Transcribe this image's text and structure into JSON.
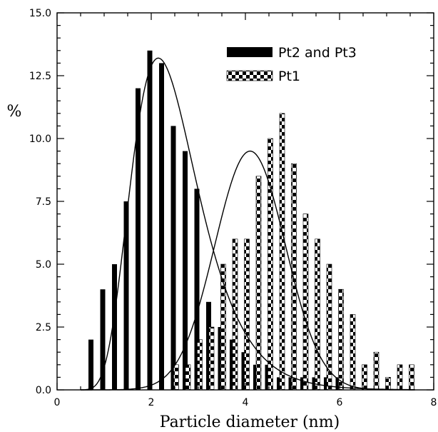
{
  "chart_data": {
    "type": "bar",
    "xlabel": "Particle diameter (nm)",
    "ylabel": "%",
    "xlim": [
      0,
      8
    ],
    "ylim": [
      0,
      15
    ],
    "x_ticks": [
      "0",
      "2",
      "4",
      "6",
      "8"
    ],
    "y_ticks": [
      "0.0",
      "2.5",
      "5.0",
      "7.5",
      "10.0",
      "12.5",
      "15.0"
    ],
    "grid": false,
    "legend": {
      "position": "top-right",
      "entries": [
        {
          "label": "Pt2 and Pt3",
          "pattern": "solid"
        },
        {
          "label": "Pt1",
          "pattern": "checkered"
        }
      ]
    },
    "series": [
      {
        "name": "Pt2 and Pt3",
        "pattern": "solid",
        "x": [
          0.75,
          1.0,
          1.25,
          1.5,
          1.75,
          2.0,
          2.25,
          2.5,
          2.75,
          3.0,
          3.25,
          3.5,
          3.75,
          4.0,
          4.25,
          4.5,
          4.75,
          5.0,
          5.25,
          5.5,
          5.75,
          6.0
        ],
        "values": [
          2.0,
          4.0,
          5.0,
          7.5,
          12.0,
          13.5,
          13.0,
          10.5,
          9.5,
          8.0,
          3.5,
          2.5,
          2.0,
          1.5,
          1.0,
          1.0,
          0.5,
          0.5,
          0.5,
          0.5,
          0.5,
          0.5
        ]
      },
      {
        "name": "Pt1",
        "pattern": "checkered",
        "x": [
          2.25,
          2.5,
          2.75,
          3.0,
          3.25,
          3.5,
          3.75,
          4.0,
          4.25,
          4.5,
          4.75,
          5.0,
          5.25,
          5.5,
          5.75,
          6.0,
          6.25,
          6.5,
          6.75,
          7.0,
          7.25,
          7.5
        ],
        "values": [
          0.0,
          1.0,
          1.0,
          2.0,
          2.5,
          5.0,
          6.0,
          6.0,
          8.5,
          10.0,
          11.0,
          9.0,
          7.0,
          6.0,
          5.0,
          4.0,
          3.0,
          1.0,
          1.5,
          0.5,
          1.0,
          1.0
        ],
        "values_note": ""
      }
    ],
    "fit_curves": [
      {
        "series": "Pt2 and Pt3",
        "shape": "lognormal",
        "peak_x": 2.15,
        "peak_y": 13.2
      },
      {
        "series": "Pt1",
        "shape": "gaussian",
        "peak_x": 4.1,
        "peak_y": 9.5
      }
    ]
  }
}
